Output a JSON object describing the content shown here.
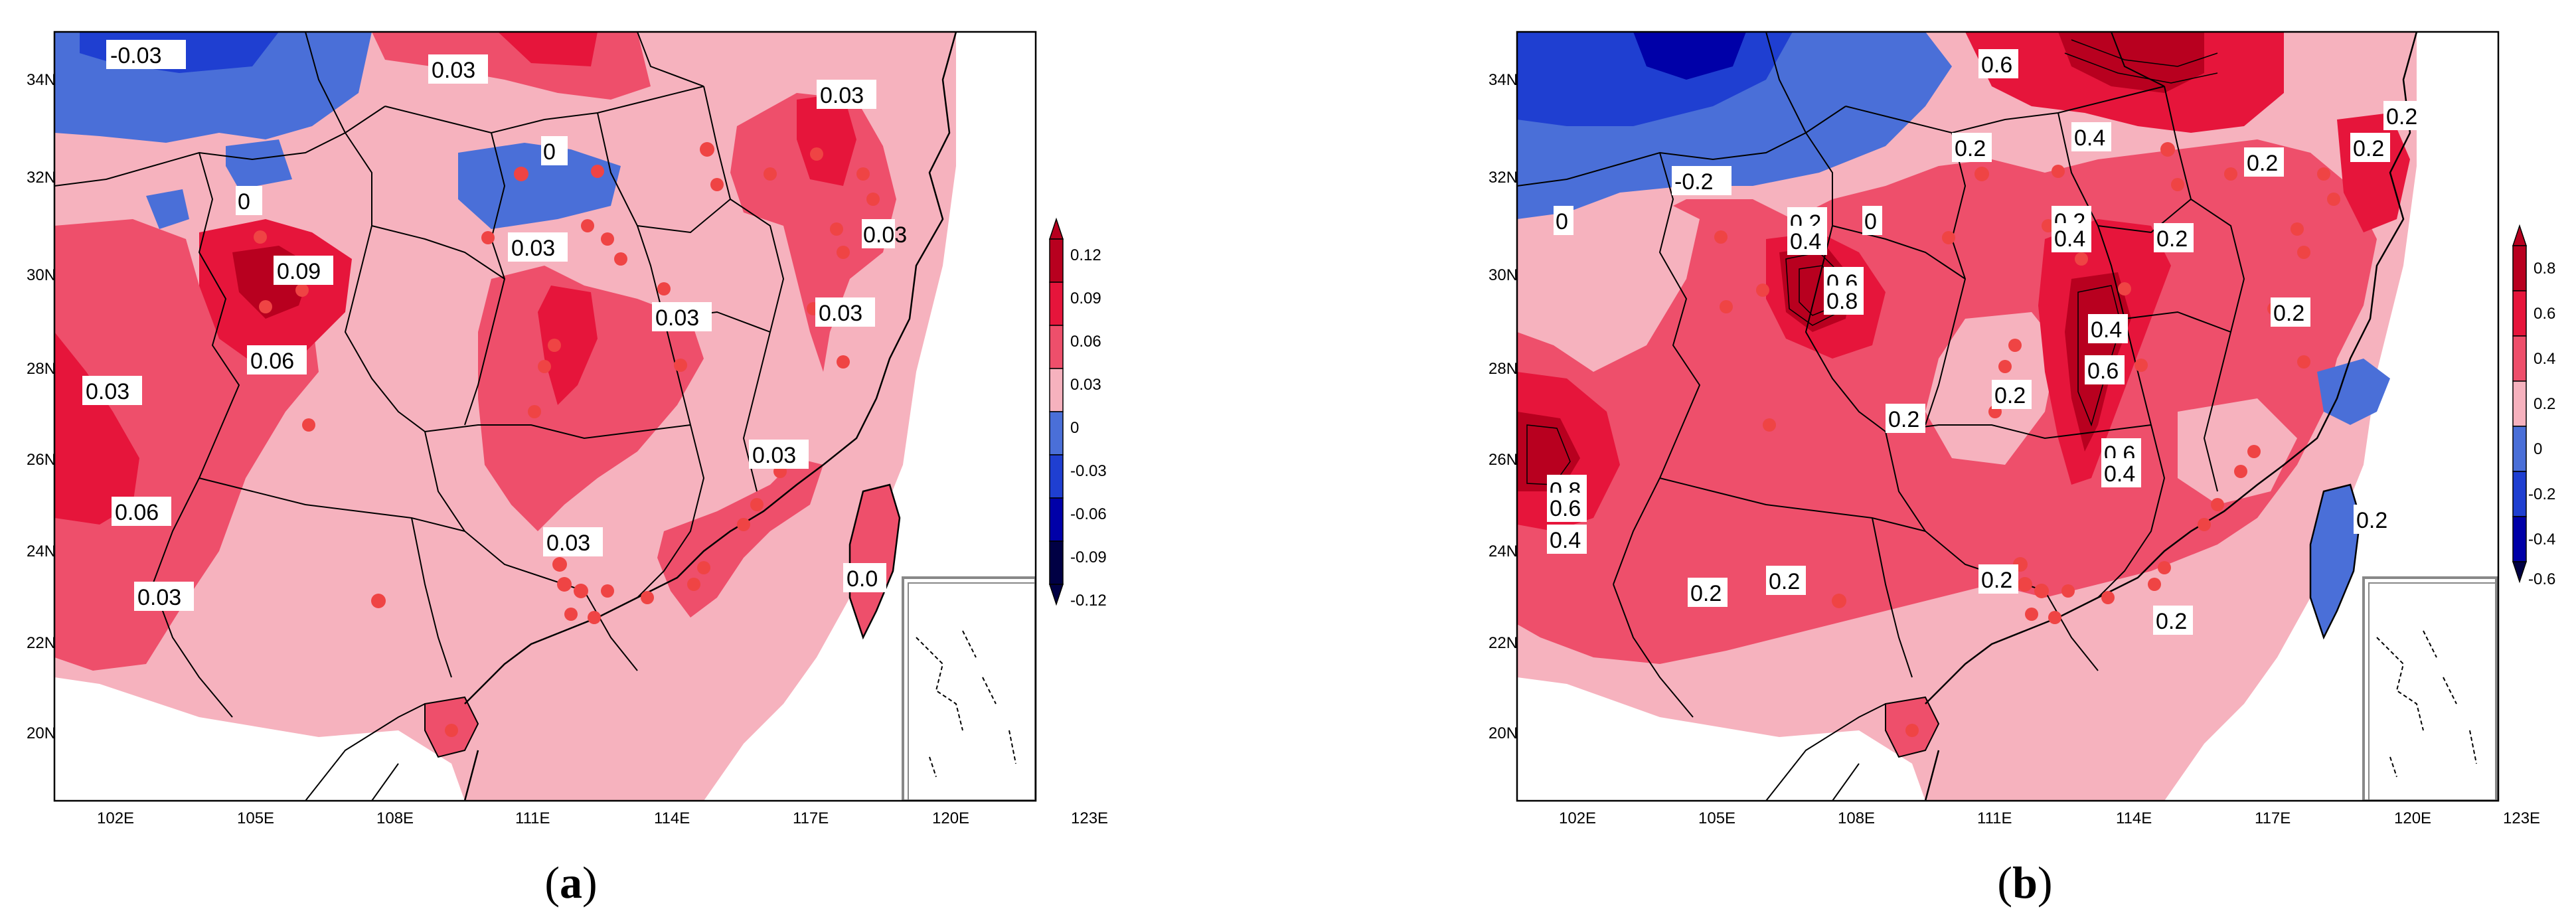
{
  "panels": [
    {
      "id": "a",
      "caption": {
        "open": "(",
        "letter": "a",
        "close": ")"
      },
      "lon_ticks": [
        "102E",
        "105E",
        "108E",
        "111E",
        "114E",
        "117E",
        "120E",
        "123E"
      ],
      "lat_ticks": [
        "34N",
        "32N",
        "30N",
        "28N",
        "26N",
        "24N",
        "22N",
        "20N"
      ],
      "colorbar_ticks": [
        "0.12",
        "0.09",
        "0.06",
        "0.03",
        "0",
        "-0.03",
        "-0.06",
        "-0.09",
        "-0.12"
      ],
      "contour_labels": [
        "-0.03",
        "0.03",
        "0",
        "0",
        "0.03",
        "0.09",
        "0.06",
        "0.03",
        "0.03",
        "0.06",
        "0.03",
        "0.03",
        "0.03",
        "0.03",
        "0.03",
        "0.0",
        "0.03"
      ],
      "colors": {
        "c1": "#000044",
        "c2": "#0000a8",
        "c3": "#1f3fd1",
        "c4": "#4a6fd8",
        "c5": "#f6b2be",
        "c6": "#ee4f6b",
        "c7": "#e6153b",
        "c8": "#b8001f"
      }
    },
    {
      "id": "b",
      "caption": {
        "open": "(",
        "letter": "b",
        "close": ")"
      },
      "lon_ticks": [
        "102E",
        "105E",
        "108E",
        "111E",
        "114E",
        "117E",
        "120E",
        "123E"
      ],
      "lat_ticks": [
        "34N",
        "32N",
        "30N",
        "28N",
        "26N",
        "24N",
        "22N",
        "20N"
      ],
      "colorbar_ticks": [
        "0.8",
        "0.6",
        "0.4",
        "0.2",
        "0",
        "-0.2",
        "-0.4",
        "-0.6"
      ],
      "contour_labels": [
        "0.6",
        "0.4",
        "0.2",
        "0.2",
        "-0.2",
        "0",
        "0.2",
        "0.4",
        "0",
        "0.2",
        "0.4",
        "0.2",
        "0.6",
        "0.8",
        "0.4",
        "0.6",
        "0.8",
        "0.6",
        "0.4",
        "0.2",
        "0.2",
        "0.2",
        "0.2",
        "0.2",
        "0.2",
        "0.2",
        "0.6",
        "0.4",
        "0.2",
        "0.2",
        "0.2"
      ],
      "colors": {
        "c1": "#000044",
        "c2": "#0000a8",
        "c3": "#1f3fd1",
        "c4": "#4a6fd8",
        "c5": "#f6b2be",
        "c6": "#ee4f6b",
        "c7": "#e6153b",
        "c8": "#b8001f"
      }
    }
  ]
}
